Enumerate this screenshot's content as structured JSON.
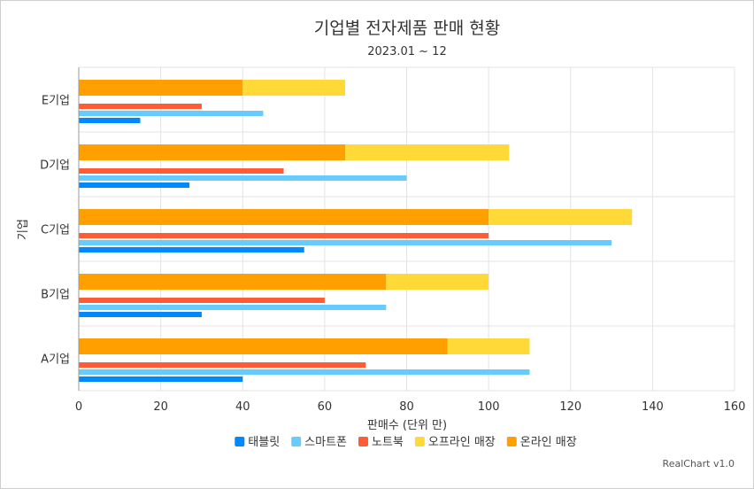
{
  "chart_data": {
    "type": "bar",
    "orientation": "horizontal",
    "title": "기업별 전자제품 판매 현황",
    "subtitle": "2023.01 ~ 12",
    "xlabel": "판매수 (단위 만)",
    "ylabel": "기업",
    "xlim": [
      0,
      160
    ],
    "x_ticks": [
      0,
      20,
      40,
      60,
      80,
      100,
      120,
      140,
      160
    ],
    "categories": [
      "A기업",
      "B기업",
      "C기업",
      "D기업",
      "E기업"
    ],
    "grid": true,
    "legend_position": "bottom",
    "series": [
      {
        "name": "태블릿",
        "color": "#0088ff",
        "values": [
          40,
          30,
          55,
          27,
          15
        ]
      },
      {
        "name": "스마트폰",
        "color": "#66ccff",
        "values": [
          110,
          75,
          130,
          80,
          45
        ]
      },
      {
        "name": "노트북",
        "color": "#ff5c35",
        "values": [
          70,
          60,
          100,
          50,
          30
        ]
      },
      {
        "name": "오프라인 매장",
        "color": "#ffd938",
        "values": [
          20,
          25,
          35,
          40,
          25
        ],
        "stack": "매장"
      },
      {
        "name": "온라인 매장",
        "color": "#ff9f00",
        "values": [
          90,
          75,
          100,
          65,
          40
        ],
        "stack": "매장"
      }
    ]
  },
  "credit": "RealChart v1.0"
}
